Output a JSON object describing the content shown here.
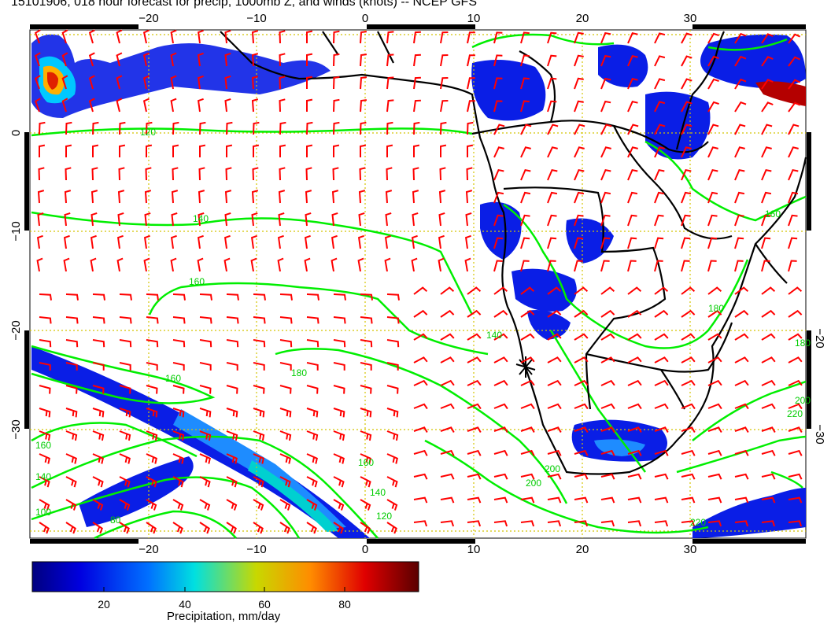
{
  "title": "15101906, 018 hour forecast for precip, 1000mb Z, and winds (knots) -- NCEP GFS",
  "axes": {
    "lon_ticks": [
      "−20",
      "−10",
      "0",
      "10",
      "20",
      "30"
    ],
    "lat_ticks": [
      "0",
      "−10",
      "−20",
      "−30"
    ],
    "lat_ticks_right": [
      "−20",
      "−30"
    ]
  },
  "contour_labels": [
    "120",
    "140",
    "160",
    "160",
    "140",
    "180",
    "200",
    "200",
    "220",
    "220",
    "200",
    "180",
    "160",
    "140",
    "120",
    "100",
    "80",
    "180",
    "160",
    "140",
    "160"
  ],
  "colorbar": {
    "label": "Precipitation, mm/day",
    "ticks": [
      "20",
      "40",
      "60",
      "80"
    ]
  },
  "colors": {
    "precip_scale": [
      "#000080",
      "#0000ff",
      "#0080ff",
      "#00ffff",
      "#ffff00",
      "#ff8000",
      "#ff0000",
      "#800000"
    ],
    "contour": "#00ff00",
    "wind_barb": "#ff0000",
    "coast": "#000000",
    "gridline": "#d4c400"
  }
}
